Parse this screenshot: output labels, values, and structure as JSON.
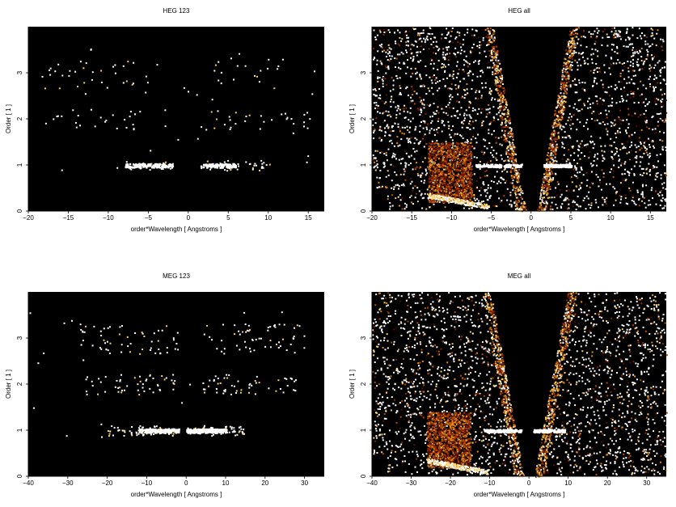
{
  "palette": {
    "background": "#000000",
    "heat": [
      "#5a0d00",
      "#8a2500",
      "#b84a00",
      "#e08a1a",
      "#ffd060",
      "#ffffff"
    ]
  },
  "chart_data": [
    {
      "type": "heatmap",
      "title": "HEG 123",
      "xlabel": "order*Wavelength [ Angstroms ]",
      "ylabel": "Order [ 1 ]",
      "xlim": [
        -20,
        17
      ],
      "ylim": [
        0,
        4
      ],
      "xticks": [
        -20,
        -15,
        -10,
        -5,
        0,
        5,
        10,
        15
      ],
      "yticks": [
        0,
        1,
        2,
        3
      ],
      "variant": "orders",
      "orders": [
        1,
        2,
        3
      ],
      "order_bands": [
        {
          "order": 1,
          "x_ranges": [
            [
              -9,
              -2
            ],
            [
              1.5,
              11
            ]
          ],
          "bright_ranges": [
            [
              -8,
              -2
            ],
            [
              1.5,
              6
            ]
          ]
        },
        {
          "order": 2,
          "x_ranges": [
            [
              -18,
              -6
            ],
            [
              2,
              16
            ]
          ]
        },
        {
          "order": 3,
          "x_ranges": [
            [
              -18,
              -3
            ],
            [
              3,
              12
            ]
          ]
        }
      ]
    },
    {
      "type": "heatmap",
      "title": "HEG all",
      "xlabel": "order*Wavelength [ Angstroms ]",
      "ylabel": "Order [ 1 ]",
      "xlim": [
        -20,
        17
      ],
      "ylim": [
        0,
        4
      ],
      "xticks": [
        -20,
        -15,
        -10,
        -5,
        0,
        5,
        10,
        15
      ],
      "yticks": [
        0,
        1,
        2,
        3
      ],
      "variant": "all",
      "order_line": {
        "order": 1,
        "x_ranges": [
          [
            -7,
            -1
          ],
          [
            1.5,
            5
          ]
        ]
      },
      "dense_block": {
        "x": [
          -13,
          -7.5
        ],
        "y": [
          0.2,
          1.5
        ]
      }
    },
    {
      "type": "heatmap",
      "title": "MEG 123",
      "xlabel": "order*Wavelength [ Angstroms ]",
      "ylabel": "Order [ 1 ]",
      "xlim": [
        -40,
        35
      ],
      "ylim": [
        0,
        4
      ],
      "xticks": [
        -40,
        -30,
        -20,
        -10,
        0,
        10,
        20,
        30
      ],
      "yticks": [
        0,
        1,
        2,
        3
      ],
      "variant": "orders",
      "orders": [
        1,
        2,
        3
      ],
      "order_bands": [
        {
          "order": 1,
          "x_ranges": [
            [
              -20,
              -3
            ],
            [
              0,
              15
            ]
          ],
          "bright_ranges": [
            [
              -12,
              -2
            ],
            [
              0,
              10
            ]
          ]
        },
        {
          "order": 2,
          "x_ranges": [
            [
              -26,
              -3
            ],
            [
              4,
              28
            ]
          ]
        },
        {
          "order": 3,
          "x_ranges": [
            [
              -27,
              -2
            ],
            [
              4,
              30
            ]
          ]
        }
      ]
    },
    {
      "type": "heatmap",
      "title": "MEG all",
      "xlabel": "order*Wavelength [ Angstroms ]",
      "ylabel": "Order [ 1 ]",
      "xlim": [
        -40,
        35
      ],
      "ylim": [
        0,
        4
      ],
      "xticks": [
        -40,
        -30,
        -20,
        -10,
        0,
        10,
        20,
        30
      ],
      "yticks": [
        0,
        1,
        2,
        3
      ],
      "variant": "all",
      "order_line": {
        "order": 1,
        "x_ranges": [
          [
            -12,
            -2
          ],
          [
            1,
            9
          ]
        ]
      },
      "dense_block": {
        "x": [
          -26,
          -15
        ],
        "y": [
          0.2,
          1.4
        ]
      }
    }
  ]
}
